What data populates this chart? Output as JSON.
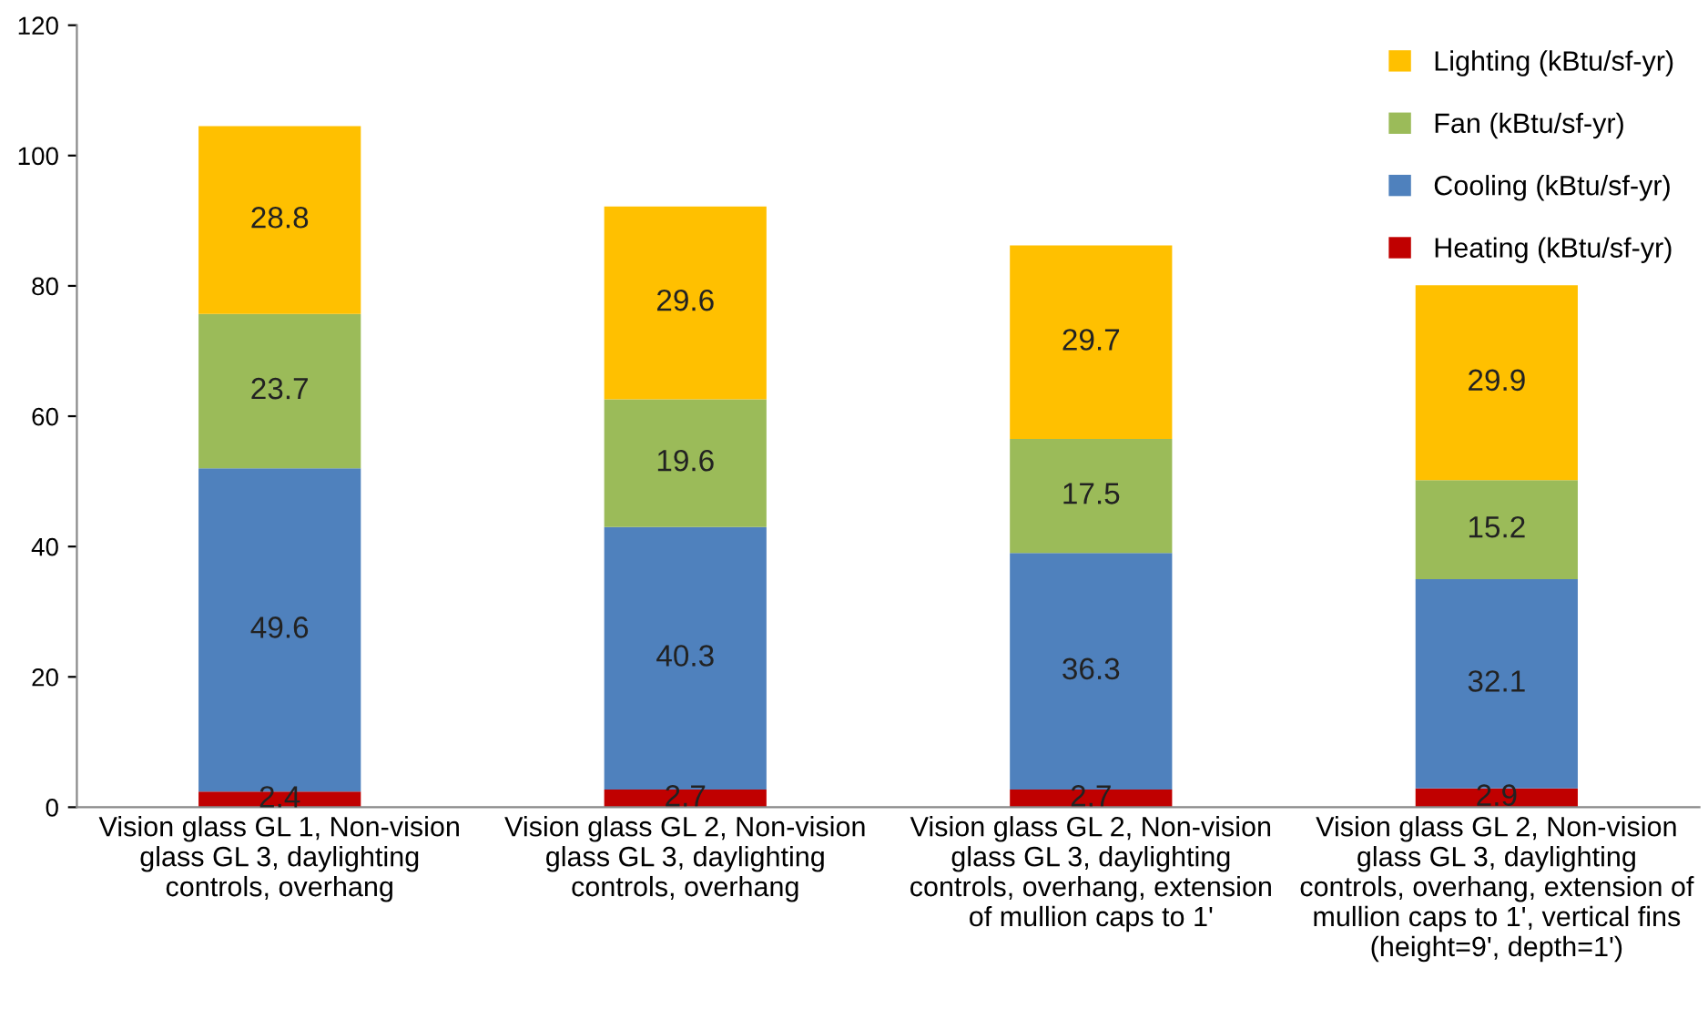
{
  "chart_data": {
    "type": "bar",
    "stacked": true,
    "categories": [
      "Vision glass GL 1, Non-vision\nglass GL 3, daylighting\ncontrols, overhang",
      "Vision glass GL 2, Non-vision\nglass GL 3, daylighting\ncontrols, overhang",
      "Vision glass GL 2, Non-vision\nglass GL 3, daylighting\ncontrols, overhang, extension\nof mullion caps to 1'",
      "Vision glass GL 2, Non-vision\nglass GL 3, daylighting\ncontrols, overhang, extension of\nmullion caps to 1', vertical fins\n(height=9', depth=1')"
    ],
    "series": [
      {
        "name": "Heating (kBtu/sf-yr)",
        "color": "#c00000",
        "values": [
          2.4,
          2.7,
          2.7,
          2.9
        ]
      },
      {
        "name": "Cooling (kBtu/sf-yr)",
        "color": "#4f81bd",
        "values": [
          49.6,
          40.3,
          36.3,
          32.1
        ]
      },
      {
        "name": "Fan (kBtu/sf-yr)",
        "color": "#9bbb59",
        "values": [
          23.7,
          19.6,
          17.5,
          15.2
        ]
      },
      {
        "name": "Lighting (kBtu/sf-yr)",
        "color": "#ffc000",
        "values": [
          28.8,
          29.6,
          29.7,
          29.9
        ]
      }
    ],
    "ylim": [
      0,
      120
    ],
    "yticks": [
      0,
      20,
      40,
      60,
      80,
      100,
      120
    ],
    "data_labels": true,
    "legend": "top right",
    "grid": false
  }
}
